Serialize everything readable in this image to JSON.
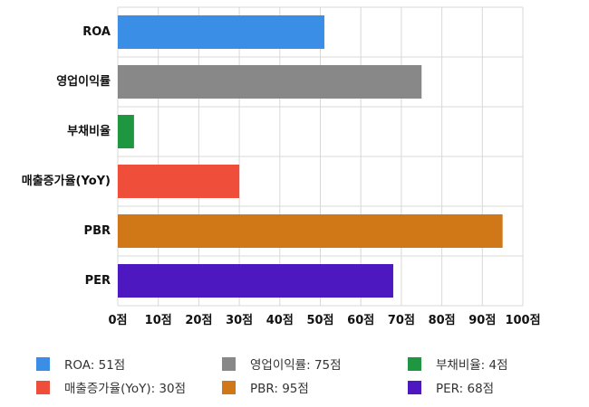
{
  "chart_data": {
    "type": "bar",
    "orientation": "horizontal",
    "categories": [
      "ROA",
      "영업이익률",
      "부채비율",
      "매출증가율(YoY)",
      "PBR",
      "PER"
    ],
    "values": [
      51,
      75,
      4,
      30,
      95,
      68
    ],
    "colors": [
      "#3a8ee6",
      "#888888",
      "#1f9640",
      "#ef4e3a",
      "#d07718",
      "#4e18c0"
    ],
    "xlim": [
      0,
      100
    ],
    "x_ticks": [
      0,
      10,
      20,
      30,
      40,
      50,
      60,
      70,
      80,
      90,
      100
    ],
    "x_tick_labels": [
      "0점",
      "10점",
      "20점",
      "30점",
      "40점",
      "50점",
      "60점",
      "70점",
      "80점",
      "90점",
      "100점"
    ],
    "grid": true,
    "legend_position": "bottom",
    "legend": [
      {
        "label": "ROA: 51점",
        "color": "#3a8ee6"
      },
      {
        "label": "영업이익률: 75점",
        "color": "#888888"
      },
      {
        "label": "부채비율: 4점",
        "color": "#1f9640"
      },
      {
        "label": "매출증가율(YoY): 30점",
        "color": "#ef4e3a"
      },
      {
        "label": "PBR: 95점",
        "color": "#d07718"
      },
      {
        "label": "PER: 68점",
        "color": "#4e18c0"
      }
    ]
  }
}
